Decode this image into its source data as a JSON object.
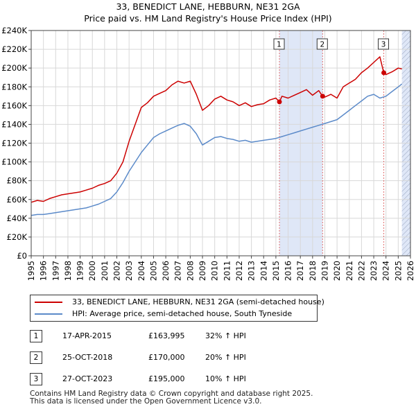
{
  "title_line1": "33, BENEDICT LANE, HEBBURN, NE31 2GA",
  "title_line2": "Price paid vs. HM Land Registry's House Price Index (HPI)",
  "colors": {
    "property": "#cc0000",
    "hpi": "#5b8ac9",
    "shade": "#dfe7f7",
    "vline": "#e07070"
  },
  "legend": {
    "property_label": "33, BENEDICT LANE, HEBBURN, NE31 2GA (semi-detached house)",
    "hpi_label": "HPI: Average price, semi-detached house, South Tyneside"
  },
  "transactions": [
    {
      "num": "1",
      "date": "17-APR-2015",
      "price": "£163,995",
      "hpi_change": "32% ↑ HPI"
    },
    {
      "num": "2",
      "date": "25-OCT-2018",
      "price": "£170,000",
      "hpi_change": "20% ↑ HPI"
    },
    {
      "num": "3",
      "date": "27-OCT-2023",
      "price": "£195,000",
      "hpi_change": "10% ↑ HPI"
    }
  ],
  "footer_line1": "Contains HM Land Registry data © Crown copyright and database right 2025.",
  "footer_line2": "This data is licensed under the Open Government Licence v3.0.",
  "chart_data": {
    "type": "line",
    "title": "33, BENEDICT LANE, HEBBURN, NE31 2GA — Price paid vs. HM Land Registry's House Price Index (HPI)",
    "xlabel": "",
    "ylabel": "",
    "xlim": [
      1995,
      2026
    ],
    "ylim": [
      0,
      240000
    ],
    "x_ticks": [
      "1995",
      "1996",
      "1997",
      "1998",
      "1999",
      "2000",
      "2001",
      "2002",
      "2003",
      "2004",
      "2005",
      "2006",
      "2007",
      "2008",
      "2009",
      "2010",
      "2011",
      "2012",
      "2013",
      "2014",
      "2015",
      "2016",
      "2017",
      "2018",
      "2019",
      "2020",
      "2021",
      "2022",
      "2023",
      "2024",
      "2025",
      "2026"
    ],
    "y_ticks": [
      0,
      20000,
      40000,
      60000,
      80000,
      100000,
      120000,
      140000,
      160000,
      180000,
      200000,
      220000,
      240000
    ],
    "y_tick_labels": [
      "£0",
      "£20K",
      "£40K",
      "£60K",
      "£80K",
      "£100K",
      "£120K",
      "£140K",
      "£160K",
      "£180K",
      "£200K",
      "£220K",
      "£240K"
    ],
    "grid": true,
    "shaded_ranges": [
      [
        2015.29,
        2018.82
      ],
      [
        2025.3,
        2026
      ]
    ],
    "hatched_range": [
      2025.3,
      2026
    ],
    "sales": [
      {
        "label": "1",
        "x": 2015.29,
        "y": 163995
      },
      {
        "label": "2",
        "x": 2018.82,
        "y": 170000
      },
      {
        "label": "3",
        "x": 2023.82,
        "y": 195000
      }
    ],
    "series": [
      {
        "name": "33, BENEDICT LANE, HEBBURN, NE31 2GA (semi-detached house)",
        "x": [
          1995.0,
          1995.5,
          1996.0,
          1996.5,
          1997.0,
          1997.5,
          1998.0,
          1998.5,
          1999.0,
          1999.5,
          2000.0,
          2000.5,
          2001.0,
          2001.5,
          2002.0,
          2002.5,
          2003.0,
          2003.5,
          2004.0,
          2004.5,
          2005.0,
          2005.5,
          2006.0,
          2006.5,
          2007.0,
          2007.5,
          2008.0,
          2008.5,
          2009.0,
          2009.5,
          2010.0,
          2010.5,
          2011.0,
          2011.5,
          2012.0,
          2012.5,
          2013.0,
          2013.5,
          2014.0,
          2014.5,
          2015.0,
          2015.29,
          2015.5,
          2016.0,
          2016.5,
          2017.0,
          2017.5,
          2018.0,
          2018.5,
          2018.82,
          2019.0,
          2019.5,
          2020.0,
          2020.5,
          2021.0,
          2021.5,
          2022.0,
          2022.5,
          2023.0,
          2023.5,
          2023.82,
          2024.0,
          2024.5,
          2025.0,
          2025.3
        ],
        "y": [
          57000,
          59000,
          58000,
          61000,
          63000,
          65000,
          66000,
          67000,
          68000,
          70000,
          72000,
          75000,
          77000,
          80000,
          88000,
          100000,
          122000,
          140000,
          158000,
          163000,
          170000,
          173000,
          176000,
          182000,
          186000,
          184000,
          186000,
          172000,
          155000,
          160000,
          167000,
          170000,
          166000,
          164000,
          160000,
          163000,
          159000,
          161000,
          162000,
          166000,
          168000,
          163995,
          170000,
          168000,
          171000,
          174000,
          177000,
          171000,
          176000,
          170000,
          169000,
          172000,
          168000,
          180000,
          184000,
          188000,
          195000,
          200000,
          206000,
          212000,
          195000,
          193000,
          196000,
          200000,
          199000
        ]
      },
      {
        "name": "HPI: Average price, semi-detached house, South Tyneside",
        "x": [
          1995.0,
          1995.5,
          1996.0,
          1996.5,
          1997.0,
          1997.5,
          1998.0,
          1998.5,
          1999.0,
          1999.5,
          2000.0,
          2000.5,
          2001.0,
          2001.5,
          2002.0,
          2002.5,
          2003.0,
          2003.5,
          2004.0,
          2004.5,
          2005.0,
          2005.5,
          2006.0,
          2006.5,
          2007.0,
          2007.5,
          2008.0,
          2008.5,
          2009.0,
          2009.5,
          2010.0,
          2010.5,
          2011.0,
          2011.5,
          2012.0,
          2012.5,
          2013.0,
          2013.5,
          2014.0,
          2014.5,
          2015.0,
          2015.5,
          2016.0,
          2016.5,
          2017.0,
          2017.5,
          2018.0,
          2018.5,
          2019.0,
          2019.5,
          2020.0,
          2020.5,
          2021.0,
          2021.5,
          2022.0,
          2022.5,
          2023.0,
          2023.5,
          2024.0,
          2024.5,
          2025.0,
          2025.3
        ],
        "y": [
          43000,
          44000,
          44000,
          45000,
          46000,
          47000,
          48000,
          49000,
          50000,
          51000,
          53000,
          55000,
          58000,
          61000,
          68000,
          78000,
          90000,
          100000,
          110000,
          118000,
          126000,
          130000,
          133000,
          136000,
          139000,
          141000,
          138000,
          130000,
          118000,
          122000,
          126000,
          127000,
          125000,
          124000,
          122000,
          123000,
          121000,
          122000,
          123000,
          124000,
          125000,
          127000,
          129000,
          131000,
          133000,
          135000,
          137000,
          139000,
          141000,
          143000,
          145000,
          150000,
          155000,
          160000,
          165000,
          170000,
          172000,
          168000,
          170000,
          175000,
          180000,
          183000
        ]
      }
    ]
  }
}
